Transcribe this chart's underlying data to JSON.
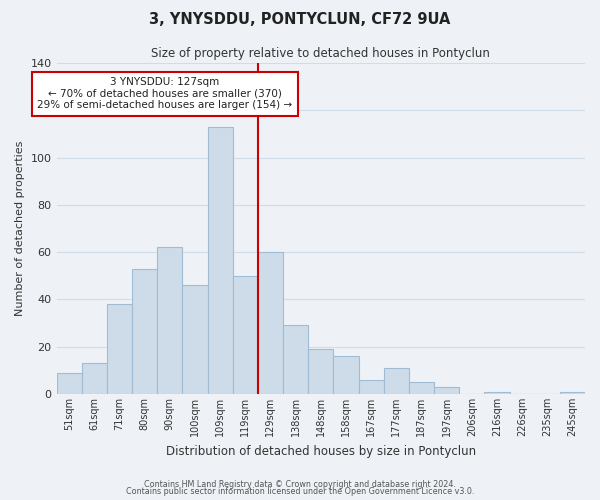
{
  "title": "3, YNYSDDU, PONTYCLUN, CF72 9UA",
  "subtitle": "Size of property relative to detached houses in Pontyclun",
  "xlabel": "Distribution of detached houses by size in Pontyclun",
  "ylabel": "Number of detached properties",
  "bar_labels": [
    "51sqm",
    "61sqm",
    "71sqm",
    "80sqm",
    "90sqm",
    "100sqm",
    "109sqm",
    "119sqm",
    "129sqm",
    "138sqm",
    "148sqm",
    "158sqm",
    "167sqm",
    "177sqm",
    "187sqm",
    "197sqm",
    "206sqm",
    "216sqm",
    "226sqm",
    "235sqm",
    "245sqm"
  ],
  "bar_values": [
    9,
    13,
    38,
    53,
    62,
    46,
    113,
    50,
    60,
    29,
    19,
    16,
    6,
    11,
    5,
    3,
    0,
    1,
    0,
    0,
    1
  ],
  "bar_color": "#cddce8",
  "bar_edge_color": "#a0bcd4",
  "vline_x": 7.5,
  "vline_color": "#cc0000",
  "ylim": [
    0,
    140
  ],
  "yticks": [
    0,
    20,
    40,
    60,
    80,
    100,
    120,
    140
  ],
  "annotation_title": "3 YNYSDDU: 127sqm",
  "annotation_line1": "← 70% of detached houses are smaller (370)",
  "annotation_line2": "29% of semi-detached houses are larger (154) →",
  "annotation_box_color": "#ffffff",
  "annotation_box_edge_color": "#cc0000",
  "footer_line1": "Contains HM Land Registry data © Crown copyright and database right 2024.",
  "footer_line2": "Contains public sector information licensed under the Open Government Licence v3.0.",
  "background_color": "#eef2f7",
  "grid_color": "#d0dce8"
}
